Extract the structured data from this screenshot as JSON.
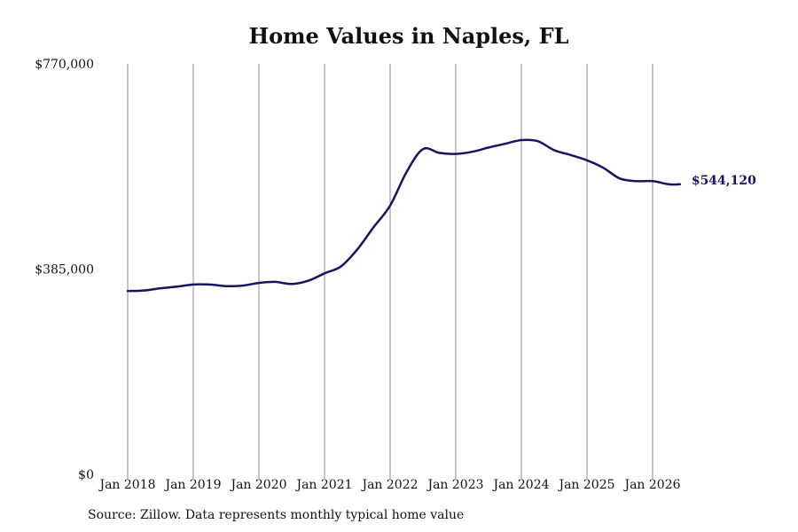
{
  "chart_data": {
    "type": "line",
    "title": "Home Values in Naples, FL",
    "y_ticks": [
      "$770,000",
      "$385,000",
      "$0"
    ],
    "ylim": [
      0,
      770000
    ],
    "x_ticks": [
      {
        "label": "Jan 2018",
        "year": 2018
      },
      {
        "label": "Jan 2019",
        "year": 2019
      },
      {
        "label": "Jan 2020",
        "year": 2020
      },
      {
        "label": "Jan 2021",
        "year": 2021
      },
      {
        "label": "Jan 2022",
        "year": 2022
      },
      {
        "label": "Jan 2023",
        "year": 2023
      },
      {
        "label": "Jan 2024",
        "year": 2024
      },
      {
        "label": "Jan 2025",
        "year": 2025
      },
      {
        "label": "Jan 2026",
        "year": 2026
      }
    ],
    "xlim": [
      "2018-01",
      "2026-09"
    ],
    "grid": {
      "vertical": true,
      "horizontal": false
    },
    "series": [
      {
        "color": "#151560",
        "end_label": "$544,120",
        "points": [
          [
            "2018-01",
            344000
          ],
          [
            "2018-04",
            345000
          ],
          [
            "2018-07",
            349000
          ],
          [
            "2018-10",
            352000
          ],
          [
            "2019-01",
            356000
          ],
          [
            "2019-04",
            356000
          ],
          [
            "2019-07",
            353000
          ],
          [
            "2019-10",
            354000
          ],
          [
            "2020-01",
            359000
          ],
          [
            "2020-04",
            361000
          ],
          [
            "2020-07",
            357000
          ],
          [
            "2020-10",
            363000
          ],
          [
            "2021-01",
            377000
          ],
          [
            "2021-04",
            390000
          ],
          [
            "2021-07",
            422000
          ],
          [
            "2021-10",
            464000
          ],
          [
            "2022-01",
            504000
          ],
          [
            "2022-04",
            567000
          ],
          [
            "2022-07",
            610000
          ],
          [
            "2022-10",
            603000
          ],
          [
            "2023-01",
            601000
          ],
          [
            "2023-04",
            605000
          ],
          [
            "2023-07",
            613000
          ],
          [
            "2023-10",
            620000
          ],
          [
            "2024-01",
            627000
          ],
          [
            "2024-04",
            625000
          ],
          [
            "2024-07",
            608000
          ],
          [
            "2024-10",
            599000
          ],
          [
            "2025-01",
            589000
          ],
          [
            "2025-04",
            575000
          ],
          [
            "2025-07",
            555000
          ],
          [
            "2025-10",
            550000
          ],
          [
            "2026-01",
            550000
          ],
          [
            "2026-04",
            544000
          ],
          [
            "2026-06",
            544120
          ]
        ]
      }
    ]
  },
  "footer": {
    "source": "Source: Zillow. Data represents monthly typical home value"
  }
}
